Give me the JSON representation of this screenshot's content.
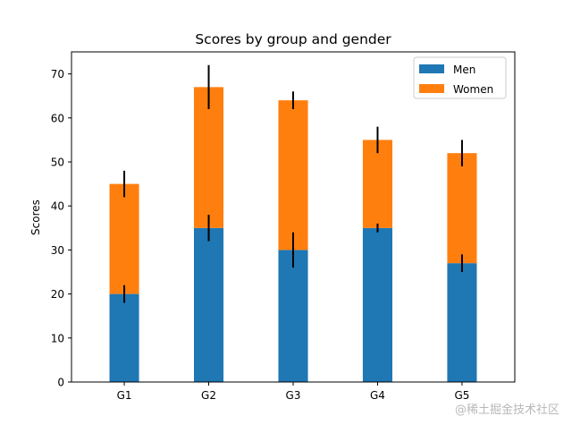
{
  "chart_data": {
    "type": "bar",
    "stacked": true,
    "title": "Scores by group and gender",
    "xlabel": "",
    "ylabel": "Scores",
    "categories": [
      "G1",
      "G2",
      "G3",
      "G4",
      "G5"
    ],
    "series": [
      {
        "name": "Men",
        "values": [
          20,
          35,
          30,
          35,
          27
        ],
        "errors": [
          2,
          3,
          4,
          1,
          2
        ],
        "color": "#1f77b4"
      },
      {
        "name": "Women",
        "values": [
          25,
          32,
          34,
          20,
          25
        ],
        "errors": [
          3,
          5,
          2,
          3,
          3
        ],
        "color": "#ff7f0e"
      }
    ],
    "ylim": [
      0,
      75
    ],
    "yticks": [
      0,
      10,
      20,
      30,
      40,
      50,
      60,
      70
    ],
    "grid": false,
    "legend": "top-right"
  },
  "watermark": "@稀土掘金技术社区"
}
